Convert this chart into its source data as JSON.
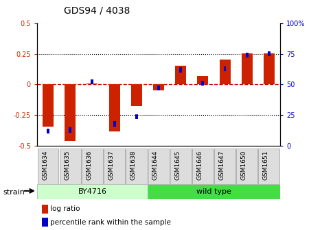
{
  "title": "GDS94 / 4038",
  "samples": [
    "GSM1634",
    "GSM1635",
    "GSM1636",
    "GSM1637",
    "GSM1638",
    "GSM1644",
    "GSM1645",
    "GSM1646",
    "GSM1647",
    "GSM1650",
    "GSM1651"
  ],
  "log_ratio": [
    -0.345,
    -0.46,
    0.01,
    -0.38,
    -0.175,
    -0.045,
    0.155,
    0.07,
    0.205,
    0.255,
    0.255
  ],
  "percentile_rank": [
    12,
    13,
    52,
    18,
    24,
    47,
    62,
    51,
    63,
    74,
    75
  ],
  "ylim_left": [
    -0.5,
    0.5
  ],
  "ylim_right": [
    0,
    100
  ],
  "bar_color": "#cc2200",
  "percentile_color": "#0000cc",
  "zero_line_color": "#cc0000",
  "dotted_line_color": "#000000",
  "background_color": "#ffffff",
  "plot_bg": "#ffffff",
  "title_color": "#000000",
  "title_fontsize": 10,
  "group_labels": [
    "BY4716",
    "wild type"
  ],
  "group_ends": [
    5,
    11
  ],
  "group_colors": [
    "#ccffcc",
    "#44dd44"
  ],
  "group_border_color": "#aaaaaa",
  "sample_box_color": "#dddddd",
  "sample_box_border": "#999999"
}
